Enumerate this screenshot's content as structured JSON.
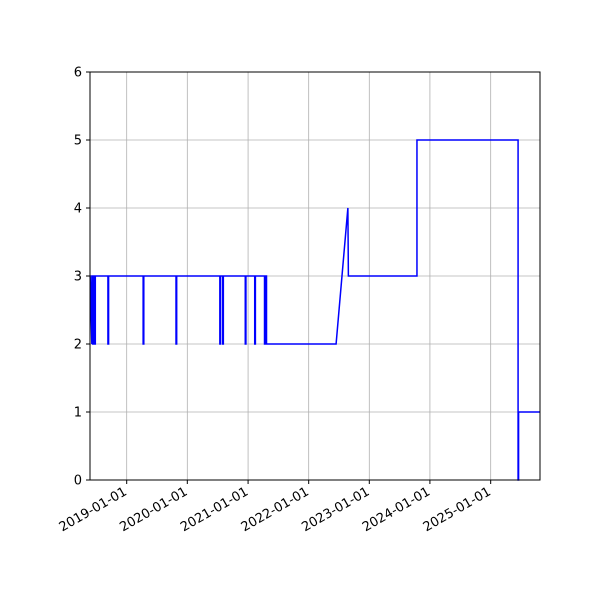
{
  "chart_data": {
    "type": "line",
    "title": "",
    "xlabel": "",
    "ylabel": "",
    "x_axis": "date",
    "xlim": [
      "2018-05-25",
      "2025-10-25"
    ],
    "ylim": [
      0,
      6
    ],
    "grid": true,
    "line_color": "#0000ff",
    "yticks": [
      0,
      1,
      2,
      3,
      4,
      5,
      6
    ],
    "ytick_labels": [
      "0",
      "1",
      "2",
      "3",
      "4",
      "5",
      "6"
    ],
    "xticks": [
      "2019-01-01",
      "2020-01-01",
      "2021-01-01",
      "2022-01-01",
      "2023-01-01",
      "2024-01-01",
      "2025-01-01"
    ],
    "xtick_labels": [
      "2019-01-01",
      "2020-01-01",
      "2021-01-01",
      "2022-01-01",
      "2023-01-01",
      "2024-01-01",
      "2025-01-01"
    ],
    "series": [
      {
        "points": [
          [
            "2018-05-25",
            3
          ],
          [
            "2018-05-26",
            3
          ],
          [
            "2018-06-05",
            2
          ],
          [
            "2018-06-05",
            3
          ],
          [
            "2018-06-10",
            3
          ],
          [
            "2018-06-10",
            2
          ],
          [
            "2018-06-14",
            2
          ],
          [
            "2018-06-14",
            3
          ],
          [
            "2018-06-17",
            3
          ],
          [
            "2018-06-17",
            2
          ],
          [
            "2018-06-20",
            2
          ],
          [
            "2018-06-20",
            3
          ],
          [
            "2018-06-23",
            3
          ],
          [
            "2018-06-23",
            2
          ],
          [
            "2018-06-26",
            2
          ],
          [
            "2018-06-26",
            3
          ],
          [
            "2018-09-10",
            3
          ],
          [
            "2018-09-10",
            2
          ],
          [
            "2018-09-14",
            2
          ],
          [
            "2018-09-14",
            3
          ],
          [
            "2019-04-10",
            3
          ],
          [
            "2019-04-10",
            2
          ],
          [
            "2019-04-14",
            2
          ],
          [
            "2019-04-14",
            3
          ],
          [
            "2019-10-25",
            3
          ],
          [
            "2019-10-25",
            2
          ],
          [
            "2019-10-29",
            2
          ],
          [
            "2019-10-29",
            3
          ],
          [
            "2020-07-15",
            3
          ],
          [
            "2020-07-15",
            2
          ],
          [
            "2020-07-19",
            2
          ],
          [
            "2020-07-19",
            3
          ],
          [
            "2020-08-01",
            3
          ],
          [
            "2020-08-01",
            2
          ],
          [
            "2020-08-05",
            2
          ],
          [
            "2020-08-05",
            3
          ],
          [
            "2020-12-15",
            3
          ],
          [
            "2020-12-15",
            2
          ],
          [
            "2020-12-19",
            2
          ],
          [
            "2020-12-19",
            3
          ],
          [
            "2021-02-10",
            3
          ],
          [
            "2021-02-10",
            2
          ],
          [
            "2021-02-14",
            2
          ],
          [
            "2021-02-14",
            3
          ],
          [
            "2021-04-10",
            3
          ],
          [
            "2021-04-10",
            2
          ],
          [
            "2021-04-14",
            2
          ],
          [
            "2021-04-14",
            3
          ],
          [
            "2021-04-22",
            3
          ],
          [
            "2021-04-22",
            2
          ],
          [
            "2022-06-15",
            2
          ],
          [
            "2022-08-25",
            4
          ],
          [
            "2022-08-28",
            3
          ],
          [
            "2023-10-15",
            3
          ],
          [
            "2023-10-15",
            5
          ],
          [
            "2025-06-15",
            5
          ],
          [
            "2025-06-15",
            0
          ],
          [
            "2025-06-18",
            0
          ],
          [
            "2025-06-18",
            1
          ],
          [
            "2025-10-25",
            1
          ]
        ]
      }
    ]
  }
}
